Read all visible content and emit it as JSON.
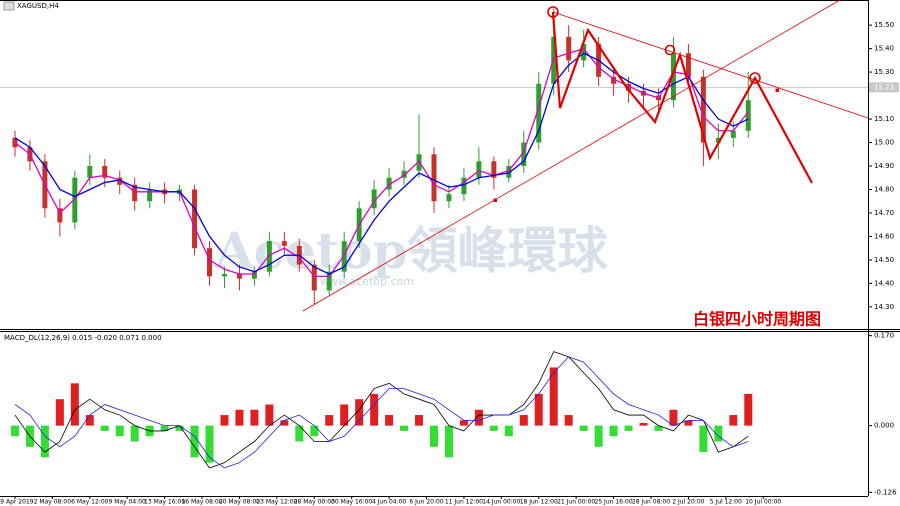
{
  "chart_data": [
    {
      "type": "candlestick",
      "title": "XAGUSD,H4",
      "annotation": "白银四小时周期图",
      "watermark": "Acetop領峰環球",
      "watermark_url": "www.acetop.com",
      "x": [
        1,
        2,
        3,
        4,
        5,
        6,
        7,
        8,
        9,
        10,
        11,
        12,
        13,
        14,
        15,
        16,
        17,
        18,
        19,
        20,
        21,
        22,
        23,
        24,
        25,
        26,
        27,
        28,
        29,
        30,
        31,
        32,
        33,
        34,
        35,
        36,
        37,
        38,
        39,
        40,
        41,
        42,
        43,
        44,
        45,
        46,
        47,
        48,
        49,
        50
      ],
      "open": [
        15.02,
        14.98,
        14.92,
        14.72,
        14.66,
        14.85,
        14.9,
        14.85,
        14.82,
        14.75,
        14.8,
        14.78,
        14.8,
        14.55,
        14.43,
        14.44,
        14.42,
        14.45,
        14.58,
        14.56,
        14.48,
        14.37,
        14.45,
        14.58,
        14.72,
        14.8,
        14.85,
        14.88,
        14.95,
        14.75,
        14.78,
        14.85,
        14.92,
        14.85,
        14.9,
        15.0,
        15.25,
        15.45,
        15.35,
        15.42,
        15.28,
        15.25,
        15.22,
        15.2,
        15.18,
        15.38,
        15.28,
        15.0,
        15.02,
        15.05
      ],
      "high": [
        15.05,
        15.01,
        14.95,
        14.76,
        14.88,
        14.95,
        14.93,
        14.88,
        14.85,
        14.83,
        14.83,
        14.82,
        14.82,
        14.58,
        14.47,
        14.48,
        14.47,
        14.62,
        14.62,
        14.59,
        14.5,
        14.48,
        14.62,
        14.75,
        14.84,
        14.89,
        14.92,
        15.12,
        14.98,
        14.82,
        14.89,
        14.98,
        14.94,
        14.93,
        15.05,
        15.3,
        15.57,
        15.5,
        15.48,
        15.45,
        15.32,
        15.28,
        15.25,
        15.23,
        15.45,
        15.42,
        15.31,
        15.08,
        15.09,
        15.3
      ],
      "low": [
        14.94,
        14.88,
        14.68,
        14.6,
        14.63,
        14.82,
        14.81,
        14.78,
        14.71,
        14.72,
        14.74,
        14.75,
        14.52,
        14.39,
        14.38,
        14.37,
        14.39,
        14.43,
        14.52,
        14.45,
        14.31,
        14.35,
        14.42,
        14.55,
        14.69,
        14.77,
        14.82,
        14.85,
        14.7,
        14.72,
        14.75,
        14.82,
        14.8,
        14.83,
        14.87,
        14.97,
        15.2,
        15.3,
        15.32,
        15.24,
        15.2,
        15.17,
        15.15,
        15.12,
        15.15,
        15.24,
        14.9,
        14.93,
        14.98,
        15.02
      ],
      "close": [
        14.98,
        14.92,
        14.72,
        14.66,
        14.85,
        14.9,
        14.85,
        14.82,
        14.75,
        14.8,
        14.78,
        14.8,
        14.55,
        14.43,
        14.44,
        14.42,
        14.45,
        14.58,
        14.56,
        14.48,
        14.37,
        14.45,
        14.58,
        14.72,
        14.8,
        14.85,
        14.88,
        14.95,
        14.75,
        14.78,
        14.85,
        14.92,
        14.85,
        14.9,
        15.0,
        15.25,
        15.45,
        15.35,
        15.42,
        15.28,
        15.25,
        15.22,
        15.2,
        15.18,
        15.38,
        15.28,
        15.0,
        15.02,
        15.05,
        15.18
      ],
      "up_color": "#2f9e2f",
      "down_color": "#c8302a",
      "moving_averages": [
        {
          "color": "#e000c0",
          "values": [
            15.0,
            14.95,
            14.82,
            14.7,
            14.76,
            14.85,
            14.86,
            14.84,
            14.79,
            14.79,
            14.79,
            14.79,
            14.64,
            14.5,
            14.46,
            14.44,
            14.44,
            14.52,
            14.55,
            14.51,
            14.43,
            14.43,
            14.52,
            14.65,
            14.75,
            14.82,
            14.86,
            14.92,
            14.82,
            14.79,
            14.83,
            14.88,
            14.86,
            14.88,
            14.96,
            15.15,
            15.36,
            15.38,
            15.4,
            15.32,
            15.27,
            15.24,
            15.21,
            15.19,
            15.3,
            15.29,
            15.11,
            15.05,
            15.05,
            15.13
          ]
        },
        {
          "color": "#0000e0",
          "values": [
            15.02,
            14.98,
            14.9,
            14.8,
            14.77,
            14.8,
            14.83,
            14.84,
            14.81,
            14.8,
            14.79,
            14.79,
            14.72,
            14.6,
            14.52,
            14.47,
            14.45,
            14.48,
            14.52,
            14.52,
            14.47,
            14.44,
            14.47,
            14.57,
            14.67,
            14.75,
            14.81,
            14.87,
            14.84,
            14.81,
            14.82,
            14.85,
            14.86,
            14.87,
            14.92,
            15.05,
            15.25,
            15.33,
            15.38,
            15.35,
            15.3,
            15.26,
            15.23,
            15.21,
            15.25,
            15.28,
            15.18,
            15.1,
            15.07,
            15.1
          ]
        }
      ],
      "current_price": {
        "value": 15.235,
        "label": "15.23"
      },
      "xlim": [
        0,
        58
      ],
      "ylim": [
        14.21,
        15.607
      ],
      "yticks": [
        {
          "value": 15.5,
          "label": "15.50"
        },
        {
          "value": 15.4,
          "label": "15.40"
        },
        {
          "value": 15.3,
          "label": "15.30"
        },
        {
          "value": 15.1,
          "label": "15.10"
        },
        {
          "value": 15.0,
          "label": "15.00"
        },
        {
          "value": 14.9,
          "label": "14.90"
        },
        {
          "value": 14.8,
          "label": "14.80"
        },
        {
          "value": 14.7,
          "label": "14.70"
        },
        {
          "value": 14.6,
          "label": "14.60"
        },
        {
          "value": 14.5,
          "label": "14.50"
        },
        {
          "value": 14.4,
          "label": "14.40"
        },
        {
          "value": 14.3,
          "label": "14.30"
        }
      ]
    },
    {
      "type": "macd",
      "title": "MACD_DL(12,26,9) 0.015 -0.020 0.071 0.000",
      "x": [
        1,
        2,
        3,
        4,
        5,
        6,
        7,
        8,
        9,
        10,
        11,
        12,
        13,
        14,
        15,
        16,
        17,
        18,
        19,
        20,
        21,
        22,
        23,
        24,
        25,
        26,
        27,
        28,
        29,
        30,
        31,
        32,
        33,
        34,
        35,
        36,
        37,
        38,
        39,
        40,
        41,
        42,
        43,
        44,
        45,
        46,
        47,
        48,
        49,
        50
      ],
      "histogram": [
        -0.02,
        -0.04,
        -0.06,
        0.05,
        0.08,
        0.02,
        -0.01,
        -0.02,
        -0.03,
        -0.02,
        -0.01,
        -0.01,
        -0.06,
        -0.07,
        0.02,
        0.03,
        0.03,
        0.04,
        0.01,
        -0.03,
        -0.02,
        0.02,
        0.04,
        0.05,
        0.06,
        0.02,
        -0.01,
        0.02,
        -0.04,
        -0.06,
        0.01,
        0.03,
        -0.01,
        -0.02,
        0.02,
        0.06,
        0.11,
        0.02,
        -0.01,
        -0.04,
        -0.02,
        -0.01,
        0.005,
        -0.01,
        0.03,
        0.01,
        -0.05,
        -0.03,
        0.02,
        0.06
      ],
      "positive_color": "#e02020",
      "negative_color": "#33dd33",
      "lines": [
        {
          "color": "#000000",
          "values": [
            0.02,
            -0.02,
            -0.05,
            -0.03,
            0.03,
            0.05,
            0.03,
            0.02,
            0.0,
            -0.01,
            -0.01,
            0.0,
            -0.04,
            -0.08,
            -0.07,
            -0.05,
            -0.03,
            0.0,
            0.02,
            0.0,
            -0.03,
            -0.03,
            0.0,
            0.03,
            0.07,
            0.08,
            0.06,
            0.05,
            0.04,
            0.0,
            -0.01,
            0.02,
            0.02,
            0.02,
            0.04,
            0.08,
            0.14,
            0.13,
            0.1,
            0.07,
            0.03,
            0.02,
            0.02,
            0.0,
            -0.01,
            0.02,
            0.01,
            -0.05,
            -0.04,
            -0.02
          ]
        },
        {
          "color": "#2020e0",
          "values": [
            0.04,
            0.02,
            -0.02,
            -0.04,
            -0.02,
            0.02,
            0.04,
            0.03,
            0.02,
            0.01,
            0.0,
            0.0,
            -0.02,
            -0.06,
            -0.08,
            -0.07,
            -0.05,
            -0.02,
            0.01,
            0.02,
            0.0,
            -0.03,
            -0.02,
            0.01,
            0.04,
            0.07,
            0.07,
            0.06,
            0.05,
            0.03,
            0.01,
            0.01,
            0.02,
            0.02,
            0.03,
            0.06,
            0.1,
            0.13,
            0.12,
            0.09,
            0.06,
            0.04,
            0.03,
            0.02,
            0.0,
            0.01,
            0.01,
            -0.02,
            -0.04,
            -0.03
          ]
        }
      ],
      "xlim": [
        0,
        58
      ],
      "ylim": [
        -0.133,
        0.177
      ],
      "yticks": [
        {
          "value": 0.17,
          "label": "0.170"
        },
        {
          "value": 0.0,
          "label": "0.000"
        },
        {
          "value": -0.126,
          "label": "-0.126"
        }
      ],
      "xticks": [
        {
          "value": 1,
          "label": "29 Apr 2019"
        },
        {
          "value": 3.5,
          "label": "2 May 08:00"
        },
        {
          "value": 6,
          "label": "6 May 12:00"
        },
        {
          "value": 8.5,
          "label": "9 May 04:00"
        },
        {
          "value": 11,
          "label": "13 May 16:00"
        },
        {
          "value": 13.5,
          "label": "16 May 08:00"
        },
        {
          "value": 16,
          "label": "20 May 08:00"
        },
        {
          "value": 18.5,
          "label": "23 May 12:00"
        },
        {
          "value": 21,
          "label": "28 May 00:00"
        },
        {
          "value": 23.5,
          "label": "30 May 16:00"
        },
        {
          "value": 26,
          "label": "4 Jun 04:00"
        },
        {
          "value": 28.5,
          "label": "6 Jun 20:00"
        },
        {
          "value": 31,
          "label": "11 Jun 12:00"
        },
        {
          "value": 33.5,
          "label": "14 Jun 00:00"
        },
        {
          "value": 36,
          "label": "18 Jun 12:00"
        },
        {
          "value": 38.5,
          "label": "21 Jun 00:00"
        },
        {
          "value": 41,
          "label": "25 Jun 16:00"
        },
        {
          "value": 43.5,
          "label": "28 Jun 08:00"
        },
        {
          "value": 46,
          "label": "2 Jul 20:00"
        },
        {
          "value": 48.5,
          "label": "5 Jul 12:00"
        },
        {
          "value": 51,
          "label": "10 Jul 00:00"
        }
      ]
    }
  ]
}
